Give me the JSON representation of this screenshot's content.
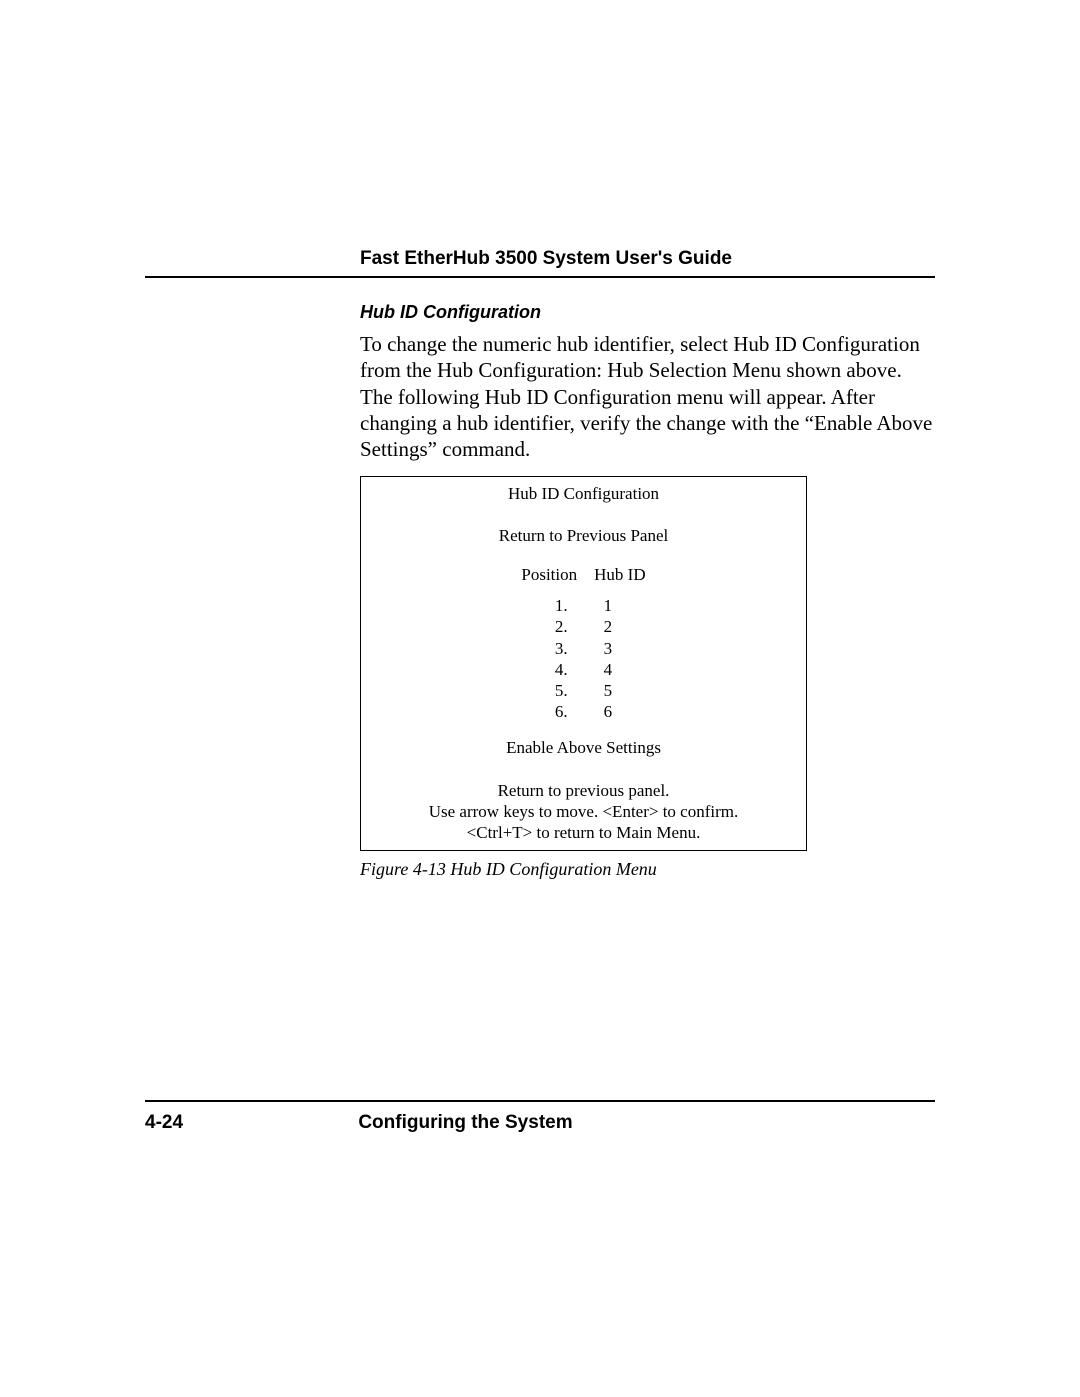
{
  "header": {
    "title": "Fast EtherHub 3500 System User's Guide"
  },
  "section": {
    "heading": "Hub ID Configuration",
    "paragraph": "To change the numeric hub identifier, select Hub ID Configuration from the Hub Configuration: Hub Selection Menu shown above.  The following Hub ID Configuration menu will appear.  After changing a hub identifier, verify the change with the “Enable Above Settings” command."
  },
  "panel": {
    "title": "Hub ID Configuration",
    "return_prev": "Return to Previous Panel",
    "col1": "Position",
    "col2": "Hub ID",
    "rows": [
      {
        "position": "1.",
        "hubid": "1"
      },
      {
        "position": "2.",
        "hubid": "2"
      },
      {
        "position": "3.",
        "hubid": "3"
      },
      {
        "position": "4.",
        "hubid": "4"
      },
      {
        "position": "5.",
        "hubid": "5"
      },
      {
        "position": "6.",
        "hubid": "6"
      }
    ],
    "enable": "Enable Above Settings",
    "hint1": "Return to previous panel.",
    "hint2": "Use arrow keys to move. <Enter> to confirm.",
    "hint3": "<Ctrl+T> to return to Main Menu."
  },
  "figure_caption": "Figure 4-13  Hub ID Configuration Menu",
  "footer": {
    "page_number": "4-24",
    "title": "Configuring the System"
  }
}
